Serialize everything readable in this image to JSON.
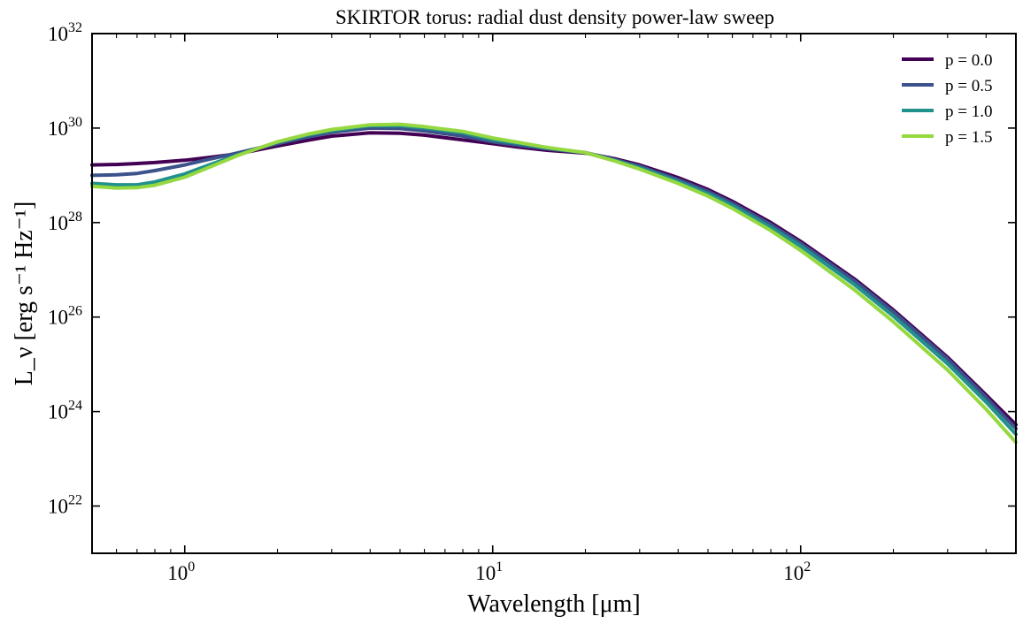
{
  "chart_data": {
    "type": "line",
    "title": "SKIRTOR torus: radial dust density power-law sweep",
    "xlabel": "Wavelength [μm]",
    "ylabel": "L_ν [erg s⁻¹ Hz⁻¹]",
    "xscale": "log",
    "yscale": "log",
    "xlim": [
      0.5,
      500
    ],
    "ylim": [
      1e+21,
      1e+32
    ],
    "x_ticks": [
      {
        "value": 1,
        "base": "10",
        "exp": "0"
      },
      {
        "value": 10,
        "base": "10",
        "exp": "1"
      },
      {
        "value": 100,
        "base": "10",
        "exp": "2"
      }
    ],
    "y_ticks": [
      {
        "value": 1e+22,
        "base": "10",
        "exp": "22"
      },
      {
        "value": 1e+24,
        "base": "10",
        "exp": "24"
      },
      {
        "value": 1e+26,
        "base": "10",
        "exp": "26"
      },
      {
        "value": 1e+28,
        "base": "10",
        "exp": "28"
      },
      {
        "value": 1e+30,
        "base": "10",
        "exp": "30"
      },
      {
        "value": 1e+32,
        "base": "10",
        "exp": "32"
      }
    ],
    "grid": false,
    "legend_position": "top-right",
    "x": [
      0.5,
      0.6,
      0.7,
      0.8,
      1.0,
      1.2,
      1.5,
      2.0,
      2.5,
      3.0,
      4.0,
      5.0,
      6.0,
      8.0,
      10,
      12,
      15,
      20,
      25,
      30,
      40,
      50,
      60,
      80,
      100,
      150,
      200,
      300,
      400,
      500
    ],
    "series": [
      {
        "name": "p = 0.0",
        "color": "#440154",
        "log_values": [
          29.22,
          29.23,
          29.25,
          29.27,
          29.32,
          29.38,
          29.46,
          29.62,
          29.74,
          29.83,
          29.9,
          29.89,
          29.85,
          29.75,
          29.67,
          29.6,
          29.53,
          29.47,
          29.35,
          29.22,
          28.95,
          28.7,
          28.45,
          28.0,
          27.6,
          26.8,
          26.15,
          25.15,
          24.35,
          23.72
        ]
      },
      {
        "name": "p = 0.5",
        "color": "#3b528b",
        "log_values": [
          29.0,
          29.01,
          29.04,
          29.1,
          29.22,
          29.34,
          29.48,
          29.67,
          29.81,
          29.91,
          30.0,
          29.99,
          29.94,
          29.83,
          29.71,
          29.64,
          29.56,
          29.48,
          29.33,
          29.19,
          28.91,
          28.66,
          28.41,
          27.96,
          27.56,
          26.76,
          26.11,
          25.11,
          24.3,
          23.64
        ]
      },
      {
        "name": "p = 1.0",
        "color": "#21918c",
        "log_values": [
          28.83,
          28.8,
          28.8,
          28.86,
          29.03,
          29.22,
          29.44,
          29.7,
          29.85,
          29.95,
          30.05,
          30.05,
          30.0,
          29.9,
          29.75,
          29.68,
          29.58,
          29.48,
          29.31,
          29.16,
          28.87,
          28.61,
          28.36,
          27.9,
          27.5,
          26.68,
          26.02,
          25.01,
          24.2,
          23.52
        ]
      },
      {
        "name": "p = 1.5",
        "color": "#95d840",
        "log_values": [
          28.77,
          28.73,
          28.74,
          28.79,
          28.96,
          29.17,
          29.43,
          29.71,
          29.87,
          29.97,
          30.07,
          30.08,
          30.03,
          29.93,
          29.79,
          29.7,
          29.59,
          29.48,
          29.3,
          29.13,
          28.83,
          28.56,
          28.3,
          27.83,
          27.41,
          26.57,
          25.9,
          24.88,
          24.05,
          23.35
        ]
      }
    ]
  }
}
